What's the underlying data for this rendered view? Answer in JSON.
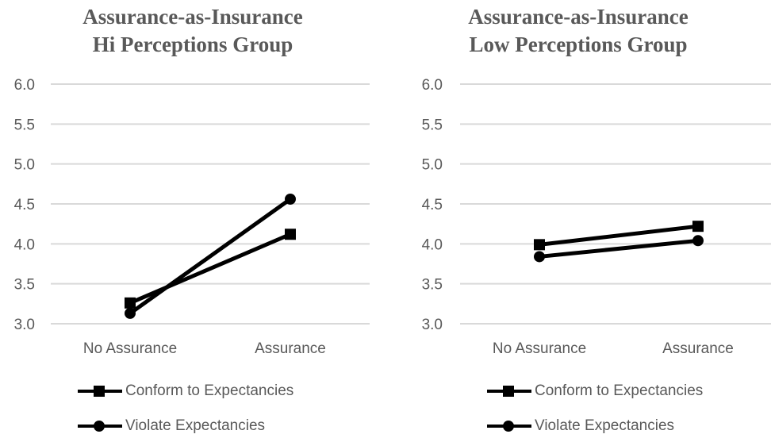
{
  "chart_data": [
    {
      "type": "line",
      "title_lines": [
        "Assurance-as-Insurance",
        "Hi  Perceptions Group"
      ],
      "categories": [
        "No Assurance",
        "Assurance"
      ],
      "ylim": [
        3.0,
        6.0
      ],
      "yticks": [
        "6.0",
        "5.5",
        "5.0",
        "4.5",
        "4.0",
        "3.5",
        "3.0"
      ],
      "grid": true,
      "legend_position": "bottom",
      "series": [
        {
          "name": "Conform to Expectancies",
          "marker": "square",
          "values": [
            3.26,
            4.12
          ]
        },
        {
          "name": "Violate Expectancies",
          "marker": "circle",
          "values": [
            3.13,
            4.56
          ]
        }
      ]
    },
    {
      "type": "line",
      "title_lines": [
        "Assurance-as-Insurance",
        "Low Perceptions Group"
      ],
      "categories": [
        "No Assurance",
        "Assurance"
      ],
      "ylim": [
        3.0,
        6.0
      ],
      "yticks": [
        "6.0",
        "5.5",
        "5.0",
        "4.5",
        "4.0",
        "3.5",
        "3.0"
      ],
      "grid": true,
      "legend_position": "bottom",
      "series": [
        {
          "name": "Conform to Expectancies",
          "marker": "square",
          "values": [
            3.99,
            4.22
          ]
        },
        {
          "name": "Violate Expectancies",
          "marker": "circle",
          "values": [
            3.84,
            4.04
          ]
        }
      ]
    }
  ],
  "colors": {
    "series_line": "#000000",
    "grid": "#d9d9d9",
    "text": "#595959"
  }
}
